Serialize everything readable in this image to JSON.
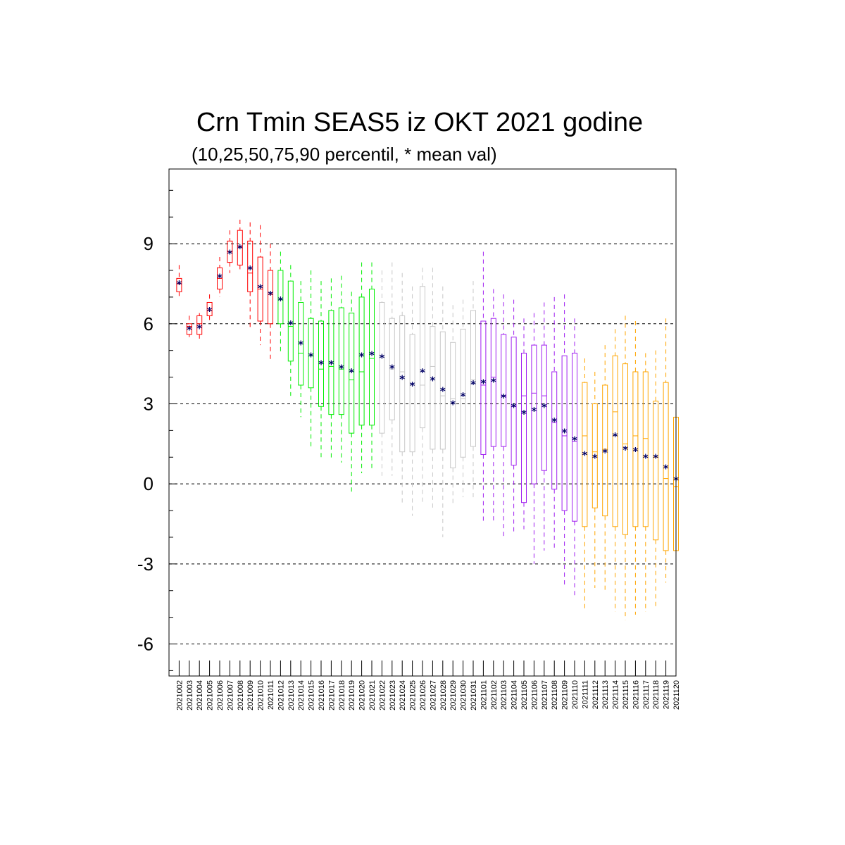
{
  "chart_data": {
    "type": "boxplot",
    "title": "Crn Tmin SEAS5 iz OKT 2021 godine",
    "subtitle": "(10,25,50,75,90 percentil, * mean val)",
    "xlabel": "",
    "ylabel": "",
    "ylim": [
      -7.2,
      11.8
    ],
    "yticks": [
      -6,
      -3,
      0,
      3,
      6,
      9
    ],
    "ytick_labels": [
      "-6",
      "-3",
      "0",
      "3",
      "6",
      "9"
    ],
    "grid": "horizontal dashed at major ticks",
    "mean_marker": "*",
    "categories": [
      "2021002",
      "2021003",
      "2021004",
      "2021005",
      "2021006",
      "2021007",
      "2021008",
      "2021009",
      "2021010",
      "2021011",
      "2021012",
      "2021013",
      "2021014",
      "2021015",
      "2021016",
      "2021017",
      "2021018",
      "2021019",
      "2021020",
      "2021021",
      "2021022",
      "2021023",
      "2021024",
      "2021025",
      "2021026",
      "2021027",
      "2021028",
      "2021029",
      "2021030",
      "2021031",
      "2021101",
      "2021102",
      "2021103",
      "2021104",
      "2021105",
      "2021106",
      "2021107",
      "2021108",
      "2021109",
      "2021110",
      "2021111",
      "2021112",
      "2021113",
      "2021114",
      "2021115",
      "2021116",
      "2021117",
      "2021118",
      "2021119",
      "2021120"
    ],
    "colors": [
      "#ff0000",
      "#ff0000",
      "#ff0000",
      "#ff0000",
      "#ff0000",
      "#ff0000",
      "#ff0000",
      "#ff0000",
      "#ff0000",
      "#ff0000",
      "#00ee00",
      "#00ee00",
      "#00ee00",
      "#00ee00",
      "#00ee00",
      "#00ee00",
      "#00ee00",
      "#00ee00",
      "#00ee00",
      "#00ee00",
      "#c8c8c8",
      "#c8c8c8",
      "#c8c8c8",
      "#c8c8c8",
      "#c8c8c8",
      "#c8c8c8",
      "#c8c8c8",
      "#c8c8c8",
      "#c8c8c8",
      "#c8c8c8",
      "#a020f0",
      "#a020f0",
      "#a020f0",
      "#a020f0",
      "#a020f0",
      "#a020f0",
      "#a020f0",
      "#a020f0",
      "#a020f0",
      "#a020f0",
      "#ffa500",
      "#ffa500",
      "#ffa500",
      "#ffa500",
      "#ffa500",
      "#ffa500",
      "#ffa500",
      "#ffa500",
      "#ffa500",
      "#ffa500"
    ],
    "p10": [
      7.0,
      5.5,
      5.4,
      6.1,
      7.0,
      7.9,
      8.0,
      5.8,
      5.2,
      4.6,
      4.9,
      3.3,
      2.5,
      1.3,
      1.0,
      0.9,
      0.8,
      -0.4,
      0.4,
      0.5,
      0.3,
      0.3,
      -0.8,
      -1.2,
      -0.8,
      -0.9,
      -2.0,
      -0.8,
      -0.5,
      -0.6,
      -1.4,
      -1.5,
      -2.0,
      -1.8,
      -1.7,
      -3.0,
      -2.5,
      -2.5,
      -3.9,
      -4.3,
      -4.7,
      -3.9,
      -4.0,
      -4.8,
      -5.1,
      -4.9,
      -4.8,
      -4.7,
      -3.7,
      -4.7
    ],
    "p25": [
      7.2,
      5.6,
      5.6,
      6.3,
      7.3,
      8.3,
      8.2,
      7.2,
      6.1,
      6.0,
      6.0,
      4.6,
      3.7,
      3.6,
      2.9,
      2.6,
      2.6,
      1.9,
      2.2,
      2.2,
      1.9,
      2.4,
      1.2,
      1.2,
      2.1,
      1.3,
      1.3,
      0.6,
      1.0,
      1.4,
      1.1,
      1.4,
      1.4,
      0.7,
      -0.7,
      0.0,
      0.5,
      -0.2,
      -1.0,
      -1.4,
      -1.6,
      -0.9,
      -1.2,
      -1.6,
      -1.9,
      -1.6,
      -1.6,
      -2.1,
      -2.5,
      -2.5
    ],
    "p50": [
      7.5,
      5.9,
      6.0,
      6.5,
      7.7,
      8.7,
      8.9,
      7.9,
      7.3,
      7.1,
      6.9,
      5.9,
      4.9,
      4.8,
      4.3,
      4.4,
      4.3,
      3.9,
      4.2,
      4.7,
      4.8,
      4.3,
      4.2,
      3.7,
      3.7,
      4.4,
      3.3,
      3.2,
      3.2,
      3.9,
      3.7,
      4.0,
      3.3,
      2.9,
      3.3,
      3.4,
      3.3,
      2.3,
      1.8,
      1.6,
      1.8,
      1.2,
      1.3,
      2.7,
      1.5,
      1.8,
      1.7,
      1.0,
      0.2,
      -0.1
    ],
    "p75": [
      7.7,
      6.0,
      6.3,
      6.8,
      8.1,
      9.1,
      9.5,
      9.1,
      8.5,
      8.0,
      8.0,
      7.6,
      6.8,
      6.2,
      6.1,
      6.5,
      6.6,
      6.4,
      7.0,
      7.3,
      6.8,
      6.2,
      6.3,
      5.6,
      7.4,
      5.9,
      5.7,
      5.3,
      5.8,
      6.5,
      6.1,
      6.2,
      5.6,
      5.5,
      4.9,
      5.2,
      5.2,
      4.2,
      4.8,
      4.9,
      3.8,
      3.0,
      3.7,
      4.8,
      4.5,
      4.2,
      4.2,
      3.1,
      3.8,
      2.5
    ],
    "p90": [
      8.2,
      6.3,
      6.4,
      7.1,
      8.5,
      9.5,
      9.9,
      9.8,
      9.7,
      9.0,
      8.7,
      8.2,
      7.6,
      8.0,
      7.6,
      7.7,
      7.8,
      7.2,
      8.3,
      8.3,
      8.0,
      8.3,
      7.9,
      7.4,
      8.1,
      8.1,
      7.4,
      6.7,
      6.9,
      7.6,
      8.7,
      7.3,
      7.1,
      6.9,
      6.2,
      6.4,
      6.8,
      7.0,
      7.1,
      6.2,
      4.7,
      4.2,
      5.2,
      5.8,
      6.3,
      6.1,
      4.9,
      5.0,
      6.2,
      5.9
    ],
    "mean": [
      7.55,
      5.85,
      5.9,
      6.55,
      7.8,
      8.7,
      8.9,
      8.1,
      7.4,
      7.15,
      6.95,
      6.05,
      5.3,
      4.85,
      4.55,
      4.55,
      4.4,
      4.25,
      4.85,
      4.9,
      4.8,
      4.4,
      4.0,
      3.75,
      4.25,
      3.95,
      3.55,
      3.05,
      3.35,
      3.8,
      3.85,
      3.9,
      3.3,
      2.95,
      2.7,
      2.8,
      2.95,
      2.4,
      2.0,
      1.7,
      1.15,
      1.05,
      1.25,
      1.85,
      1.35,
      1.3,
      1.05,
      1.05,
      0.65,
      0.2
    ]
  }
}
